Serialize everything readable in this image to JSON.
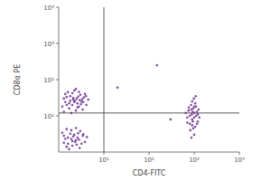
{
  "chart_data": {
    "type": "scatter",
    "x_label": "CD4-FITC",
    "y_label": "CD8α PE",
    "log": true,
    "color": "#6b2d8f",
    "xlim": [
      1,
      10000
    ],
    "ylim": [
      1,
      10000
    ],
    "xticks": [
      {
        "value": 10,
        "label": "10¹"
      },
      {
        "value": 100,
        "label": "10²"
      },
      {
        "value": 1000,
        "label": "10³"
      },
      {
        "value": 10000,
        "label": "10⁴"
      }
    ],
    "yticks": [
      {
        "value": 10,
        "label": "10¹"
      },
      {
        "value": 100,
        "label": "10²"
      },
      {
        "value": 1000,
        "label": "10³"
      },
      {
        "value": 10000,
        "label": "10⁴"
      }
    ],
    "quadrants": {
      "x": 10,
      "y": 12
    },
    "x": [
      1.5,
      2.1,
      2.8,
      1.8,
      3.2,
      2.4,
      1.3,
      2,
      3.6,
      2.6,
      1.7,
      2.2,
      4.1,
      1.4,
      3,
      2.5,
      1.9,
      3.4,
      2.3,
      1.6,
      2.9,
      4.5,
      1.2,
      2.7,
      3.8,
      2,
      1.5,
      3.1,
      2.4,
      1.8,
      2.6,
      3.3,
      1.4,
      2.2,
      4,
      2.8,
      1.7,
      3.5,
      2.1,
      1.3,
      1.6,
      2.2,
      1.3,
      2.8,
      1.9,
      3.4,
      1.5,
      2.5,
      2,
      1.2,
      3,
      2.4,
      1.7,
      3.8,
      2.1,
      1.4,
      2.9,
      1.8,
      2.6,
      3.2,
      1.5,
      2.3,
      1.3,
      2,
      4.2,
      2.7,
      1.6,
      3.5,
      1.9,
      2.4,
      900,
      1000,
      800,
      1100,
      950,
      700,
      1200,
      850,
      1050,
      900,
      750,
      1150,
      1000,
      880,
      1300,
      650,
      980,
      1100,
      820,
      930,
      1050,
      760,
      1250,
      870,
      1000,
      920,
      1150,
      800,
      1080,
      950,
      700,
      1000,
      860,
      1200,
      900,
      20,
      300,
      150
    ],
    "values": [
      20,
      28,
      18,
      35,
      25,
      14,
      30,
      42,
      32,
      22,
      16,
      50,
      20,
      24,
      38,
      30,
      12,
      15,
      26,
      45,
      27,
      28,
      18,
      34,
      40,
      20,
      33,
      21,
      55,
      26,
      17,
      29,
      40,
      24,
      35,
      46,
      22,
      24,
      31,
      13,
      2.5,
      3,
      1.8,
      2.2,
      4,
      2.8,
      1.4,
      1.6,
      2,
      3.4,
      3.8,
      4.6,
      1.2,
      1.9,
      2.7,
      2.3,
      1.3,
      3.2,
      2.5,
      1.7,
      4.3,
      1.9,
      2.8,
      1.5,
      2.6,
      3.3,
      1.7,
      3.1,
      2.3,
      2.1,
      8,
      12,
      6,
      10,
      16,
      9,
      7,
      20,
      5,
      25,
      14,
      13,
      3,
      11,
      9,
      12,
      30,
      18,
      4,
      7,
      22,
      17,
      15,
      2.5,
      9,
      13,
      6,
      10,
      35,
      4.5,
      6.5,
      18,
      15,
      11,
      5.5,
      60,
      8,
      250
    ]
  }
}
